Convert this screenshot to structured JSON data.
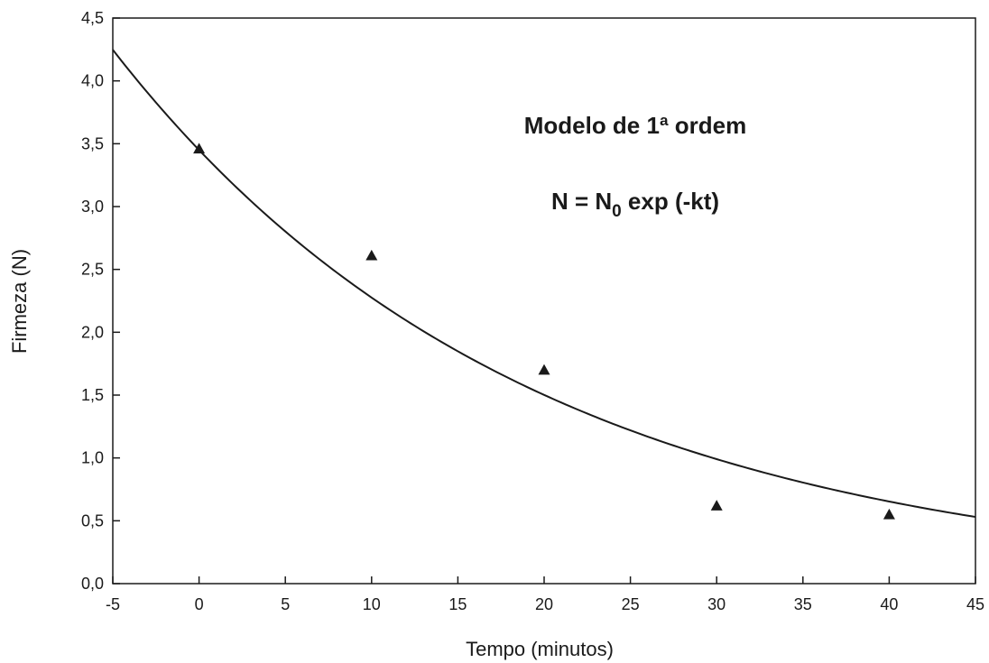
{
  "chart_data": {
    "type": "scatter",
    "xlabel": "Tempo (minutos)",
    "ylabel": "Firmeza (N)",
    "xlim": [
      -5,
      45
    ],
    "ylim": [
      0,
      4.5
    ],
    "x_ticks": [
      -5,
      0,
      5,
      10,
      15,
      20,
      25,
      30,
      35,
      40,
      45
    ],
    "y_ticks": [
      0,
      0.5,
      1.0,
      1.5,
      2.0,
      2.5,
      3.0,
      3.5,
      4.0,
      4.5
    ],
    "x_tick_labels": [
      "-5",
      "0",
      "5",
      "10",
      "15",
      "20",
      "25",
      "30",
      "35",
      "40",
      "45"
    ],
    "y_tick_labels": [
      "0,0",
      "0,5",
      "1,0",
      "1,5",
      "2,0",
      "2,5",
      "3,0",
      "3,5",
      "4,0",
      "4,5"
    ],
    "grid": false,
    "points": {
      "x": [
        0,
        10,
        20,
        30,
        40
      ],
      "y": [
        3.46,
        2.61,
        1.7,
        0.62,
        0.55
      ]
    },
    "fit": {
      "type": "exponential",
      "n0": 3.45,
      "k": 0.0416
    },
    "annotations": {
      "title": "Modelo de 1ª ordem",
      "equation_prefix": "N = N",
      "equation_subscript": "0",
      "equation_suffix": " exp (-kt)"
    },
    "colors": {
      "marks": "#1a1a1a",
      "axis": "#1a1a1a",
      "background": "#ffffff"
    }
  }
}
